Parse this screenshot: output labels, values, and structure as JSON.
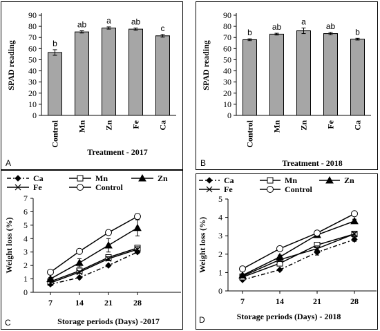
{
  "chart_data": [
    {
      "type": "bar",
      "panel_label": "A",
      "xlabel": "Treatment - 2017",
      "ylabel": "SPAD reading",
      "categories": [
        "Control",
        "Mn",
        "Zn",
        "Fe",
        "Ca"
      ],
      "values": [
        56.5,
        75,
        78.5,
        77.5,
        71.5
      ],
      "errors": [
        2.5,
        1,
        1,
        1,
        1.2
      ],
      "labels": [
        "b",
        "ab",
        "a",
        "ab",
        "c"
      ],
      "ylim": [
        0,
        90
      ],
      "yticks": [
        "0",
        "10",
        "20",
        "30",
        "40",
        "50",
        "60",
        "70",
        "80",
        "90"
      ],
      "bar_color": "#a6a6a6"
    },
    {
      "type": "bar",
      "panel_label": "B",
      "xlabel": "Treatment - 2018",
      "ylabel": "SPAD reading",
      "categories": [
        "Control",
        "Mn",
        "Zn",
        "Fe",
        "Ca"
      ],
      "values": [
        68,
        73,
        76,
        73.5,
        68.5
      ],
      "errors": [
        0.8,
        0.8,
        2.5,
        1,
        0.8
      ],
      "labels": [
        "b",
        "ab",
        "a",
        "ab",
        "b"
      ],
      "ylim": [
        0,
        90
      ],
      "yticks": [
        "0",
        "10",
        "20",
        "30",
        "40",
        "50",
        "60",
        "70",
        "80",
        "90"
      ],
      "bar_color": "#a6a6a6"
    },
    {
      "type": "line",
      "panel_label": "C",
      "xlabel": "Storage periods (Days) -2017",
      "ylabel": "Weight loss (%)",
      "categories": [
        "7",
        "14",
        "21",
        "28"
      ],
      "ylim": [
        0,
        7
      ],
      "yticks": [
        "0",
        "1",
        "2",
        "3",
        "4",
        "5",
        "6",
        "7"
      ],
      "series": [
        {
          "name": "Ca",
          "marker": "diamond",
          "dash": "dashdot",
          "values": [
            0.6,
            1.1,
            2.0,
            3.0
          ],
          "errors": [
            0,
            0,
            0,
            0.1
          ]
        },
        {
          "name": "Mn",
          "marker": "square",
          "dash": "solid",
          "values": [
            0.8,
            1.6,
            2.6,
            3.3
          ],
          "errors": [
            0.1,
            0.1,
            0.15,
            0.2
          ]
        },
        {
          "name": "Zn",
          "marker": "triangle",
          "dash": "solid",
          "values": [
            1.0,
            2.2,
            3.5,
            4.8
          ],
          "errors": [
            0.1,
            0.3,
            0.5,
            0.6
          ]
        },
        {
          "name": "Fe",
          "marker": "x",
          "dash": "solid",
          "values": [
            0.7,
            1.5,
            2.5,
            3.2
          ],
          "errors": [
            0.1,
            0.1,
            0.15,
            0.2
          ]
        },
        {
          "name": "Control",
          "marker": "circle",
          "dash": "solid",
          "values": [
            1.5,
            3.05,
            4.45,
            5.65
          ],
          "errors": [
            0.1,
            0.1,
            0.15,
            0.2
          ]
        }
      ]
    },
    {
      "type": "line",
      "panel_label": "D",
      "xlabel": "Storage periods (Days) - 2018",
      "ylabel": "Weight loss (%)",
      "categories": [
        "7",
        "14",
        "21",
        "28"
      ],
      "ylim": [
        0,
        5
      ],
      "yticks": [
        "0",
        "1",
        "2",
        "3",
        "4",
        "5"
      ],
      "series": [
        {
          "name": "Ca",
          "marker": "diamond",
          "dash": "dashdot",
          "values": [
            0.6,
            1.15,
            2.1,
            2.8
          ],
          "errors": [
            0.05,
            0.05,
            0.15,
            0.1
          ]
        },
        {
          "name": "Mn",
          "marker": "square",
          "dash": "solid",
          "values": [
            0.75,
            1.5,
            2.5,
            3.1
          ],
          "errors": [
            0.05,
            0.1,
            0.15,
            0.1
          ]
        },
        {
          "name": "Zn",
          "marker": "triangle",
          "dash": "solid",
          "values": [
            0.85,
            1.85,
            3.05,
            3.8
          ],
          "errors": [
            0.05,
            0.1,
            0.1,
            0.1
          ]
        },
        {
          "name": "Fe",
          "marker": "x",
          "dash": "solid",
          "values": [
            0.8,
            1.7,
            2.3,
            3.1
          ],
          "errors": [
            0.05,
            0.1,
            0.15,
            0.1
          ]
        },
        {
          "name": "Control",
          "marker": "circle",
          "dash": "solid",
          "values": [
            1.2,
            2.3,
            3.15,
            4.2
          ],
          "errors": [
            0.05,
            0.05,
            0.1,
            0.05
          ]
        }
      ]
    }
  ]
}
